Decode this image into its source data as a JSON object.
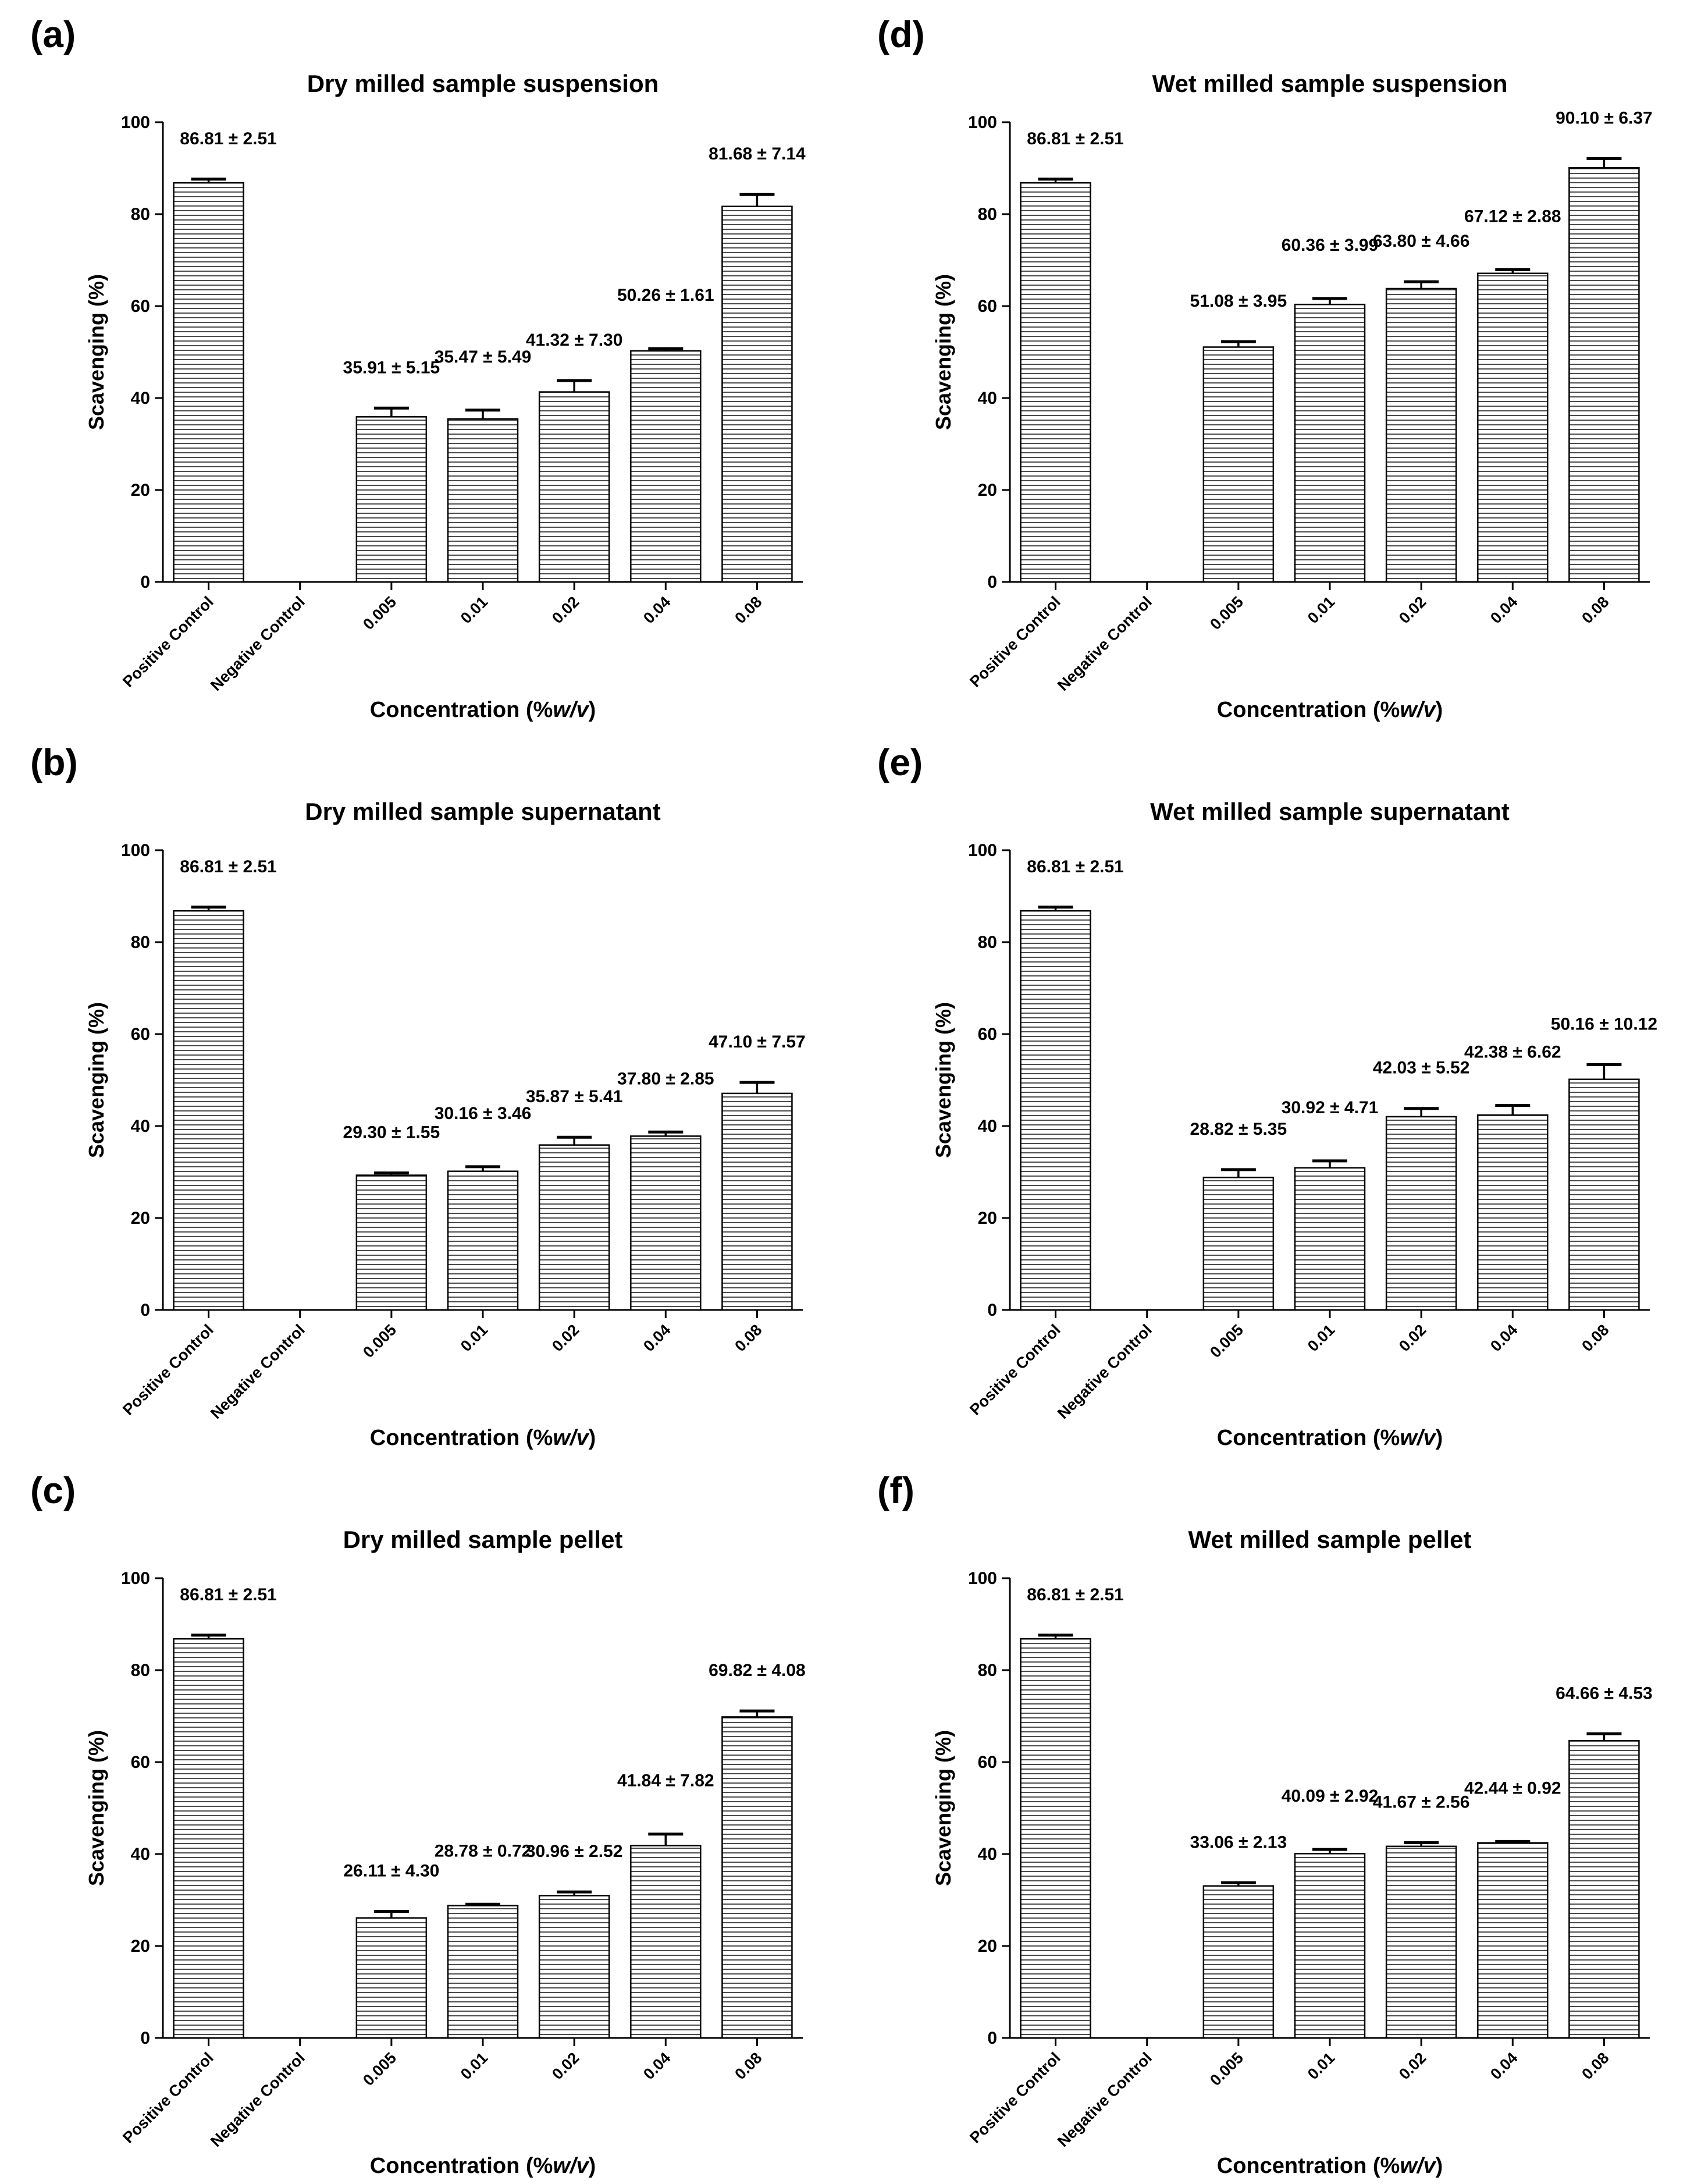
{
  "figure": {
    "panels": [
      {
        "letter": "(a)",
        "title": "Dry milled sample suspension"
      },
      {
        "letter": "(d)",
        "title": "Wet milled sample suspension"
      },
      {
        "letter": "(b)",
        "title": "Dry milled sample supernatant"
      },
      {
        "letter": "(e)",
        "title": "Wet milled sample supernatant"
      },
      {
        "letter": "(c)",
        "title": "Dry milled sample pellet"
      },
      {
        "letter": "(f)",
        "title": "Wet milled sample pellet"
      }
    ]
  },
  "chart_data": [
    {
      "type": "bar",
      "title": "Dry milled sample suspension",
      "xlabel_prefix": "Concentration (%",
      "xlabel_em": "w/v",
      "xlabel_suffix": ")",
      "ylabel": "Scavenging (%)",
      "ylim": [
        0,
        100
      ],
      "yticks": [
        0,
        20,
        40,
        60,
        80,
        100
      ],
      "categories": [
        "Positive Control",
        "Negative Control",
        "0.005",
        "0.01",
        "0.02",
        "0.04",
        "0.08"
      ],
      "values": [
        86.81,
        0,
        35.91,
        35.47,
        41.32,
        50.26,
        81.68
      ],
      "errors": [
        0.8,
        0,
        1.9,
        1.9,
        2.5,
        0.5,
        2.6
      ],
      "labels": [
        "86.81 ± 2.51",
        "",
        "35.91 ± 5.15",
        "35.47 ± 5.49",
        "41.32 ± 7.30",
        "50.26 ± 1.61",
        "81.68 ± 7.14"
      ]
    },
    {
      "type": "bar",
      "title": "Wet milled sample suspension",
      "xlabel_prefix": "Concentration (%",
      "xlabel_em": "w/v",
      "xlabel_suffix": ")",
      "ylabel": "Scavenging (%)",
      "ylim": [
        0,
        100
      ],
      "yticks": [
        0,
        20,
        40,
        60,
        80,
        100
      ],
      "categories": [
        "Positive Control",
        "Negative Control",
        "0.005",
        "0.01",
        "0.02",
        "0.04",
        "0.08"
      ],
      "values": [
        86.81,
        0,
        51.08,
        60.36,
        63.8,
        67.12,
        90.1
      ],
      "errors": [
        0.8,
        0,
        1.2,
        1.3,
        1.5,
        0.8,
        2.0
      ],
      "labels": [
        "86.81 ± 2.51",
        "",
        "51.08 ± 3.95",
        "60.36 ± 3.99",
        "63.80 ± 4.66",
        "67.12 ± 2.88",
        "90.10 ± 6.37"
      ]
    },
    {
      "type": "bar",
      "title": "Dry milled sample supernatant",
      "xlabel_prefix": "Concentration (%",
      "xlabel_em": "w/v",
      "xlabel_suffix": ")",
      "ylabel": "Scavenging (%)",
      "ylim": [
        0,
        100
      ],
      "yticks": [
        0,
        20,
        40,
        60,
        80,
        100
      ],
      "categories": [
        "Positive Control",
        "Negative Control",
        "0.005",
        "0.01",
        "0.02",
        "0.04",
        "0.08"
      ],
      "values": [
        86.81,
        0,
        29.3,
        30.16,
        35.87,
        37.8,
        47.1
      ],
      "errors": [
        0.8,
        0,
        0.5,
        1.0,
        1.7,
        0.9,
        2.4
      ],
      "labels": [
        "86.81 ± 2.51",
        "",
        "29.30 ± 1.55",
        "30.16 ± 3.46",
        "35.87 ± 5.41",
        "37.80 ± 2.85",
        "47.10 ± 7.57"
      ]
    },
    {
      "type": "bar",
      "title": "Wet milled sample supernatant",
      "xlabel_prefix": "Concentration (%",
      "xlabel_em": "w/v",
      "xlabel_suffix": ")",
      "ylabel": "Scavenging (%)",
      "ylim": [
        0,
        100
      ],
      "yticks": [
        0,
        20,
        40,
        60,
        80,
        100
      ],
      "categories": [
        "Positive Control",
        "Negative Control",
        "0.005",
        "0.01",
        "0.02",
        "0.04",
        "0.08"
      ],
      "values": [
        86.81,
        0,
        28.82,
        30.92,
        42.03,
        42.38,
        50.16
      ],
      "errors": [
        0.8,
        0,
        1.7,
        1.5,
        1.8,
        2.1,
        3.2
      ],
      "labels": [
        "86.81 ± 2.51",
        "",
        "28.82 ± 5.35",
        "30.92 ± 4.71",
        "42.03 ± 5.52",
        "42.38 ± 6.62",
        "50.16 ± 10.12"
      ]
    },
    {
      "type": "bar",
      "title": "Dry milled sample pellet",
      "xlabel_prefix": "Concentration (%",
      "xlabel_em": "w/v",
      "xlabel_suffix": ")",
      "ylabel": "Scavenging (%)",
      "ylim": [
        0,
        100
      ],
      "yticks": [
        0,
        20,
        40,
        60,
        80,
        100
      ],
      "categories": [
        "Positive Control",
        "Negative Control",
        "0.005",
        "0.01",
        "0.02",
        "0.04",
        "0.08"
      ],
      "values": [
        86.81,
        0,
        26.11,
        28.78,
        30.96,
        41.84,
        69.82
      ],
      "errors": [
        0.8,
        0,
        1.4,
        0.3,
        0.8,
        2.5,
        1.3
      ],
      "labels": [
        "86.81 ± 2.51",
        "",
        "26.11 ± 4.30",
        "28.78 ± 0.72",
        "30.96 ± 2.52",
        "41.84 ± 7.82",
        "69.82 ± 4.08"
      ]
    },
    {
      "type": "bar",
      "title": "Wet milled sample pellet",
      "xlabel_prefix": "Concentration (%",
      "xlabel_em": "w/v",
      "xlabel_suffix": ")",
      "ylabel": "Scavenging (%)",
      "ylim": [
        0,
        100
      ],
      "yticks": [
        0,
        20,
        40,
        60,
        80,
        100
      ],
      "categories": [
        "Positive Control",
        "Negative Control",
        "0.005",
        "0.01",
        "0.02",
        "0.04",
        "0.08"
      ],
      "values": [
        86.81,
        0,
        33.06,
        40.09,
        41.67,
        42.44,
        64.66
      ],
      "errors": [
        0.8,
        0,
        0.7,
        0.9,
        0.8,
        0.3,
        1.5
      ],
      "labels": [
        "86.81 ± 2.51",
        "",
        "33.06 ± 2.13",
        "40.09 ± 2.92",
        "41.67 ± 2.56",
        "42.44 ± 0.92",
        "64.66 ± 4.53"
      ]
    }
  ]
}
